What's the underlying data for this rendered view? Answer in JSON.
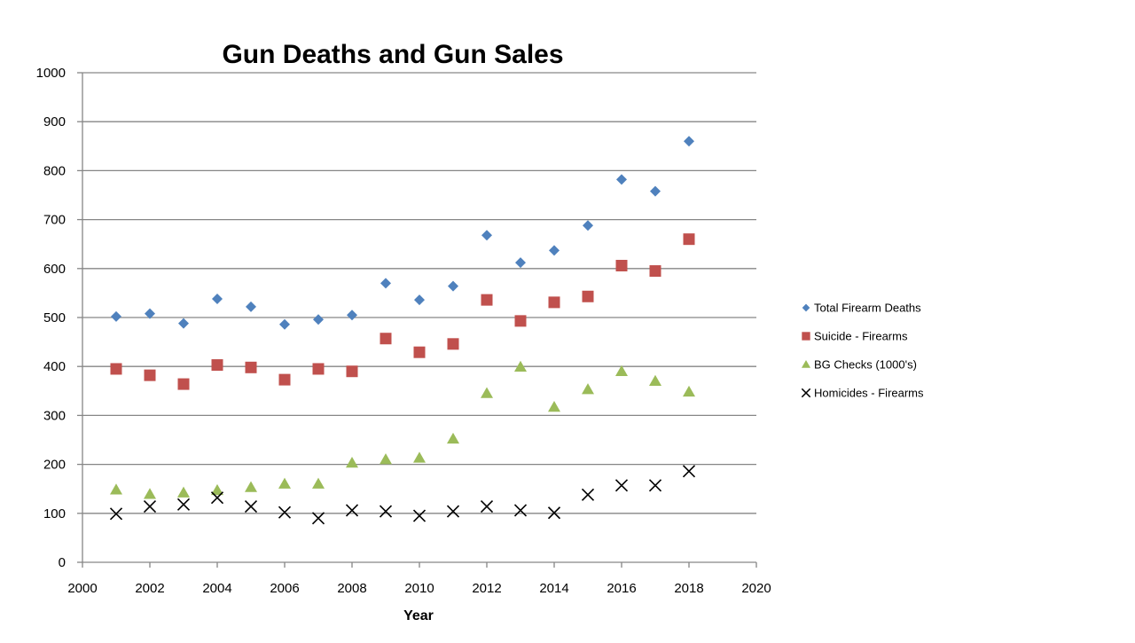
{
  "chart_data": {
    "type": "scatter",
    "title": "Gun Deaths and Gun Sales",
    "xlabel": "Year",
    "ylabel": "",
    "xlim": [
      2000,
      2020
    ],
    "ylim": [
      0,
      1000
    ],
    "xticks": [
      2000,
      2002,
      2004,
      2006,
      2008,
      2010,
      2012,
      2014,
      2016,
      2018,
      2020
    ],
    "yticks": [
      0,
      100,
      200,
      300,
      400,
      500,
      600,
      700,
      800,
      900,
      1000
    ],
    "grid": "horizontal",
    "legend_position": "right",
    "x": [
      2001,
      2002,
      2003,
      2004,
      2005,
      2006,
      2007,
      2008,
      2009,
      2010,
      2011,
      2012,
      2013,
      2014,
      2015,
      2016,
      2017,
      2018
    ],
    "series": [
      {
        "name": "Total Firearm Deaths",
        "marker": "diamond",
        "color": "#4f81bd",
        "values": [
          502,
          508,
          488,
          538,
          522,
          486,
          496,
          505,
          570,
          536,
          564,
          668,
          612,
          637,
          688,
          782,
          758,
          860
        ]
      },
      {
        "name": "Suicide - Firearms",
        "marker": "square",
        "color": "#c0504d",
        "values": [
          395,
          382,
          364,
          403,
          398,
          373,
          395,
          390,
          457,
          429,
          446,
          536,
          493,
          531,
          543,
          606,
          595,
          660
        ]
      },
      {
        "name": "BG Checks (1000's)",
        "marker": "triangle",
        "color": "#9bbb59",
        "values": [
          148,
          139,
          142,
          147,
          153,
          160,
          160,
          203,
          210,
          213,
          252,
          345,
          399,
          317,
          353,
          390,
          370,
          348
        ]
      },
      {
        "name": "Homicides - Firearms",
        "marker": "x",
        "color": "#000000",
        "values": [
          99,
          114,
          118,
          132,
          114,
          102,
          90,
          106,
          104,
          95,
          104,
          114,
          106,
          101,
          138,
          157,
          157,
          186
        ]
      }
    ]
  }
}
